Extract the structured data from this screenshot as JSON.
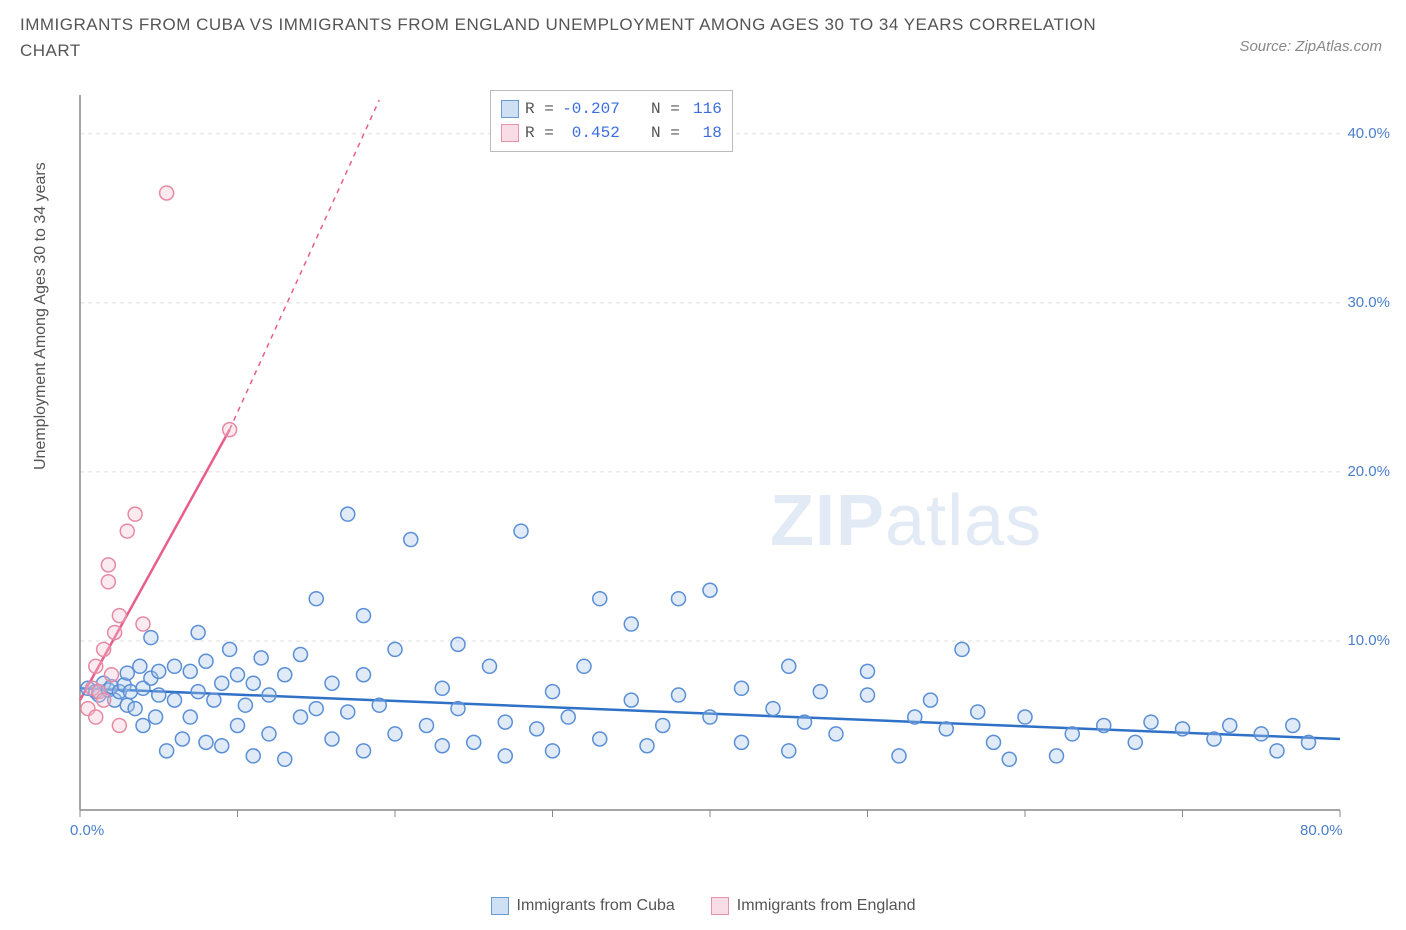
{
  "title": "IMMIGRANTS FROM CUBA VS IMMIGRANTS FROM ENGLAND UNEMPLOYMENT AMONG AGES 30 TO 34 YEARS CORRELATION CHART",
  "source_label": "Source: ZipAtlas.com",
  "y_axis_label": "Unemployment Among Ages 30 to 34 years",
  "watermark_a": "ZIP",
  "watermark_b": "atlas",
  "chart": {
    "type": "scatter",
    "background_color": "#ffffff",
    "grid_color": "#dddddd",
    "axis_color": "#888888",
    "x_range": [
      0,
      80
    ],
    "y_range": [
      0,
      42
    ],
    "x_ticks": [
      0,
      10,
      20,
      30,
      40,
      50,
      60,
      70,
      80
    ],
    "x_tick_labels": [
      "0.0%",
      "",
      "",
      "",
      "",
      "",
      "",
      "",
      "80.0%"
    ],
    "y_ticks": [
      10,
      20,
      30,
      40
    ],
    "y_tick_labels": [
      "10.0%",
      "20.0%",
      "30.0%",
      "40.0%"
    ],
    "marker_radius": 7,
    "marker_stroke_width": 1.5,
    "marker_fill_opacity": 0.35,
    "series": [
      {
        "name": "Immigrants from Cuba",
        "legend_label": "Immigrants from Cuba",
        "color_stroke": "#5a8fd6",
        "color_fill": "#a9c7ea",
        "swatch_fill": "#cfe0f4",
        "swatch_border": "#6a9ad4",
        "R": "-0.207",
        "N": "116",
        "trend": {
          "x1": 0,
          "y1": 7.2,
          "x2": 80,
          "y2": 4.2,
          "color": "#2f71c7",
          "width": 2.5,
          "dash": ""
        },
        "points": [
          [
            0.5,
            7.2
          ],
          [
            1,
            7.0
          ],
          [
            1.2,
            6.8
          ],
          [
            1.5,
            7.5
          ],
          [
            1.8,
            7.1
          ],
          [
            2,
            7.3
          ],
          [
            2.2,
            6.5
          ],
          [
            2.5,
            7.0
          ],
          [
            2.8,
            7.4
          ],
          [
            3,
            6.2
          ],
          [
            3,
            8.1
          ],
          [
            3.2,
            7.0
          ],
          [
            3.5,
            6.0
          ],
          [
            3.8,
            8.5
          ],
          [
            4,
            7.2
          ],
          [
            4,
            5.0
          ],
          [
            4.5,
            7.8
          ],
          [
            4.5,
            10.2
          ],
          [
            4.8,
            5.5
          ],
          [
            5,
            6.8
          ],
          [
            5,
            8.2
          ],
          [
            5.5,
            3.5
          ],
          [
            6,
            6.5
          ],
          [
            6,
            8.5
          ],
          [
            6.5,
            4.2
          ],
          [
            7,
            8.2
          ],
          [
            7,
            5.5
          ],
          [
            7.5,
            7.0
          ],
          [
            7.5,
            10.5
          ],
          [
            8,
            8.8
          ],
          [
            8,
            4.0
          ],
          [
            8.5,
            6.5
          ],
          [
            9,
            3.8
          ],
          [
            9,
            7.5
          ],
          [
            9.5,
            9.5
          ],
          [
            10,
            5.0
          ],
          [
            10,
            8.0
          ],
          [
            10.5,
            6.2
          ],
          [
            11,
            3.2
          ],
          [
            11,
            7.5
          ],
          [
            11.5,
            9.0
          ],
          [
            12,
            4.5
          ],
          [
            12,
            6.8
          ],
          [
            13,
            3.0
          ],
          [
            13,
            8.0
          ],
          [
            14,
            5.5
          ],
          [
            14,
            9.2
          ],
          [
            15,
            6.0
          ],
          [
            15,
            12.5
          ],
          [
            16,
            4.2
          ],
          [
            16,
            7.5
          ],
          [
            17,
            5.8
          ],
          [
            17,
            17.5
          ],
          [
            18,
            3.5
          ],
          [
            18,
            11.5
          ],
          [
            18,
            8.0
          ],
          [
            19,
            6.2
          ],
          [
            20,
            4.5
          ],
          [
            20,
            9.5
          ],
          [
            21,
            16.0
          ],
          [
            22,
            5.0
          ],
          [
            23,
            7.2
          ],
          [
            23,
            3.8
          ],
          [
            24,
            9.8
          ],
          [
            24,
            6.0
          ],
          [
            25,
            4.0
          ],
          [
            26,
            8.5
          ],
          [
            27,
            5.2
          ],
          [
            27,
            3.2
          ],
          [
            28,
            16.5
          ],
          [
            29,
            4.8
          ],
          [
            30,
            7.0
          ],
          [
            30,
            3.5
          ],
          [
            31,
            5.5
          ],
          [
            32,
            8.5
          ],
          [
            33,
            12.5
          ],
          [
            33,
            4.2
          ],
          [
            35,
            6.5
          ],
          [
            35,
            11.0
          ],
          [
            36,
            3.8
          ],
          [
            37,
            5.0
          ],
          [
            38,
            6.8
          ],
          [
            38,
            12.5
          ],
          [
            40,
            13.0
          ],
          [
            40,
            5.5
          ],
          [
            42,
            4.0
          ],
          [
            42,
            7.2
          ],
          [
            44,
            6.0
          ],
          [
            45,
            8.5
          ],
          [
            45,
            3.5
          ],
          [
            46,
            5.2
          ],
          [
            47,
            7.0
          ],
          [
            48,
            4.5
          ],
          [
            50,
            6.8
          ],
          [
            50,
            8.2
          ],
          [
            52,
            3.2
          ],
          [
            53,
            5.5
          ],
          [
            54,
            6.5
          ],
          [
            55,
            4.8
          ],
          [
            56,
            9.5
          ],
          [
            57,
            5.8
          ],
          [
            58,
            4.0
          ],
          [
            59,
            3.0
          ],
          [
            60,
            5.5
          ],
          [
            62,
            3.2
          ],
          [
            63,
            4.5
          ],
          [
            65,
            5.0
          ],
          [
            67,
            4.0
          ],
          [
            68,
            5.2
          ],
          [
            70,
            4.8
          ],
          [
            72,
            4.2
          ],
          [
            73,
            5.0
          ],
          [
            75,
            4.5
          ],
          [
            76,
            3.5
          ],
          [
            77,
            5.0
          ],
          [
            78,
            4.0
          ]
        ]
      },
      {
        "name": "Immigrants from England",
        "legend_label": "Immigrants from England",
        "color_stroke": "#e68aa4",
        "color_fill": "#f4c3d1",
        "swatch_fill": "#f9dde6",
        "swatch_border": "#e892aa",
        "R": "0.452",
        "N": "18",
        "trend_solid": {
          "x1": 0,
          "y1": 6.5,
          "x2": 9.5,
          "y2": 22.5,
          "color": "#e85d8a",
          "width": 2.5
        },
        "trend_dash": {
          "x1": 9.5,
          "y1": 22.5,
          "x2": 19,
          "y2": 42,
          "color": "#e85d8a",
          "width": 1.5
        },
        "points": [
          [
            0.5,
            6.0
          ],
          [
            0.8,
            7.2
          ],
          [
            1.0,
            5.5
          ],
          [
            1.0,
            8.5
          ],
          [
            1.2,
            7.0
          ],
          [
            1.5,
            9.5
          ],
          [
            1.5,
            6.5
          ],
          [
            1.8,
            13.5
          ],
          [
            1.8,
            14.5
          ],
          [
            2.0,
            8.0
          ],
          [
            2.2,
            10.5
          ],
          [
            2.5,
            11.5
          ],
          [
            2.5,
            5.0
          ],
          [
            3.0,
            16.5
          ],
          [
            3.5,
            17.5
          ],
          [
            4.0,
            11.0
          ],
          [
            5.5,
            36.5
          ],
          [
            9.5,
            22.5
          ]
        ]
      }
    ]
  },
  "info_box": {
    "rows": [
      {
        "swatch_fill": "#cfe0f4",
        "swatch_border": "#6a9ad4",
        "R_label": "R =",
        "R": "-0.207",
        "N_label": "N =",
        "N": "116"
      },
      {
        "swatch_fill": "#f9dde6",
        "swatch_border": "#e892aa",
        "R_label": "R =",
        "R": "0.452",
        "N_label": "N =",
        "N": "18"
      }
    ]
  }
}
